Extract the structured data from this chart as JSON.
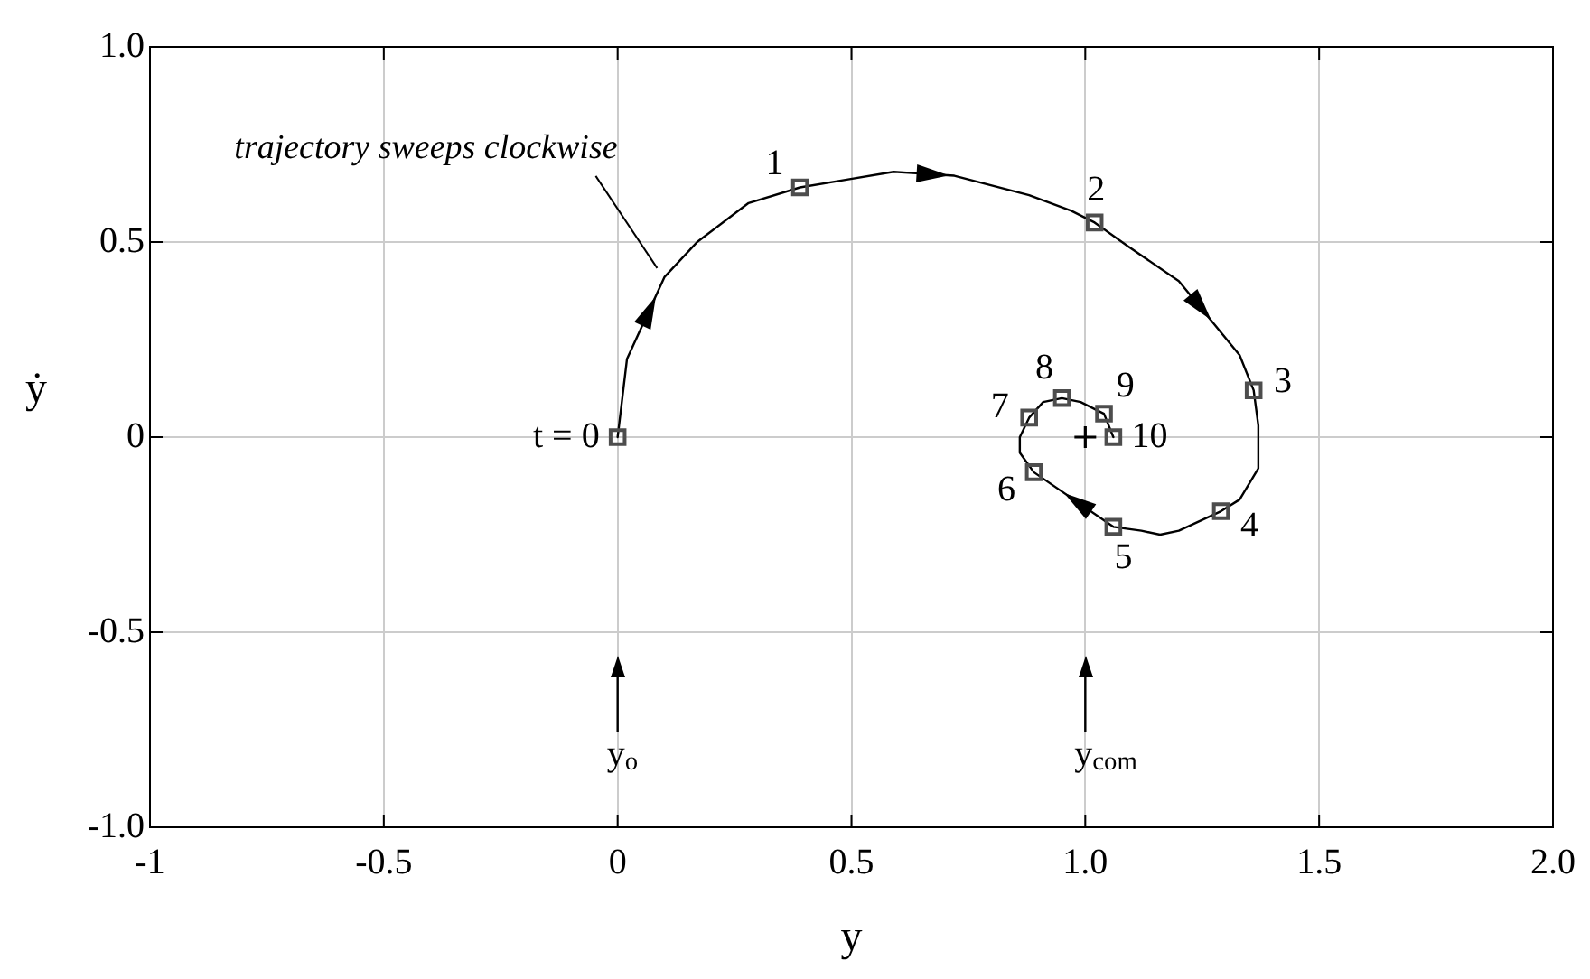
{
  "chart_data": {
    "type": "line",
    "xlabel": "y",
    "ylabel": "ẏ",
    "xlim": [
      -1,
      2
    ],
    "ylim": [
      -1,
      1
    ],
    "xticks": [
      -1,
      -0.5,
      0,
      0.5,
      {
        "value": 1,
        "label": "1.0"
      },
      1.5,
      {
        "value": 2,
        "label": "2.0"
      }
    ],
    "yticks": [
      {
        "value": -1,
        "label": "-1.0"
      },
      -0.5,
      0,
      0.5,
      {
        "value": 1,
        "label": "1.0"
      }
    ],
    "grid": true,
    "series": [
      {
        "color": "#000000",
        "marker": "none",
        "x": [
          0,
          0.02,
          0.1,
          0.17,
          0.28,
          0.39,
          0.49,
          0.59,
          0.72,
          0.88,
          0.97,
          1.02,
          1.09,
          1.2,
          1.33,
          1.36,
          1.37,
          1.37,
          1.33,
          1.29,
          1.2,
          1.16,
          1.12,
          1.06,
          0.89,
          0.86,
          0.86,
          0.88,
          0.91,
          0.95,
          0.99,
          1.04,
          1.06
        ],
        "values": [
          0,
          0.2,
          0.41,
          0.5,
          0.6,
          0.64,
          0.66,
          0.68,
          0.67,
          0.62,
          0.58,
          0.55,
          0.49,
          0.4,
          0.21,
          0.12,
          0.03,
          -0.08,
          -0.16,
          -0.19,
          -0.24,
          -0.25,
          -0.24,
          -0.23,
          -0.09,
          -0.04,
          0,
          0.05,
          0.09,
          0.1,
          0.09,
          0.06,
          0
        ]
      },
      {
        "type": "scatter",
        "color": "#4d4d4d",
        "marker": "square",
        "x": [
          0,
          0.39,
          1.02,
          1.36,
          1.29,
          1.06,
          0.89,
          0.88,
          0.95,
          1.04,
          1.06
        ],
        "values": [
          0,
          0.64,
          0.55,
          0.12,
          -0.19,
          -0.23,
          -0.09,
          0.05,
          0.1,
          0.06,
          0
        ]
      },
      {
        "type": "scatter",
        "color": "#000000",
        "marker": "cross",
        "x": [
          1
        ],
        "values": [
          0
        ]
      }
    ],
    "ref_lines": [
      {
        "axis": "x",
        "value": 0,
        "label": "y$_{o}$",
        "color": "#000000"
      },
      {
        "axis": "x",
        "value": 1,
        "label": "y$_{com}$",
        "color": "#000000"
      }
    ],
    "annotations": [
      {
        "text": "trajectory sweeps clockwise",
        "x": 0.1,
        "y": 0.41
      },
      {
        "text": "t = 0",
        "x": 0,
        "y": 0
      },
      {
        "text": "1",
        "x": 0.39,
        "y": 0.64
      },
      {
        "text": "2",
        "x": 1.02,
        "y": 0.55
      },
      {
        "text": "3",
        "x": 1.36,
        "y": 0.12
      },
      {
        "text": "4",
        "x": 1.29,
        "y": -0.19
      },
      {
        "text": "5",
        "x": 1.06,
        "y": -0.23
      },
      {
        "text": "6",
        "x": 0.89,
        "y": -0.09
      },
      {
        "text": "7",
        "x": 0.88,
        "y": 0.05
      },
      {
        "text": "8",
        "x": 0.95,
        "y": 0.1
      },
      {
        "text": "9",
        "x": 1.04,
        "y": 0.06
      },
      {
        "text": "10",
        "x": 1.06,
        "y": 0
      }
    ]
  }
}
